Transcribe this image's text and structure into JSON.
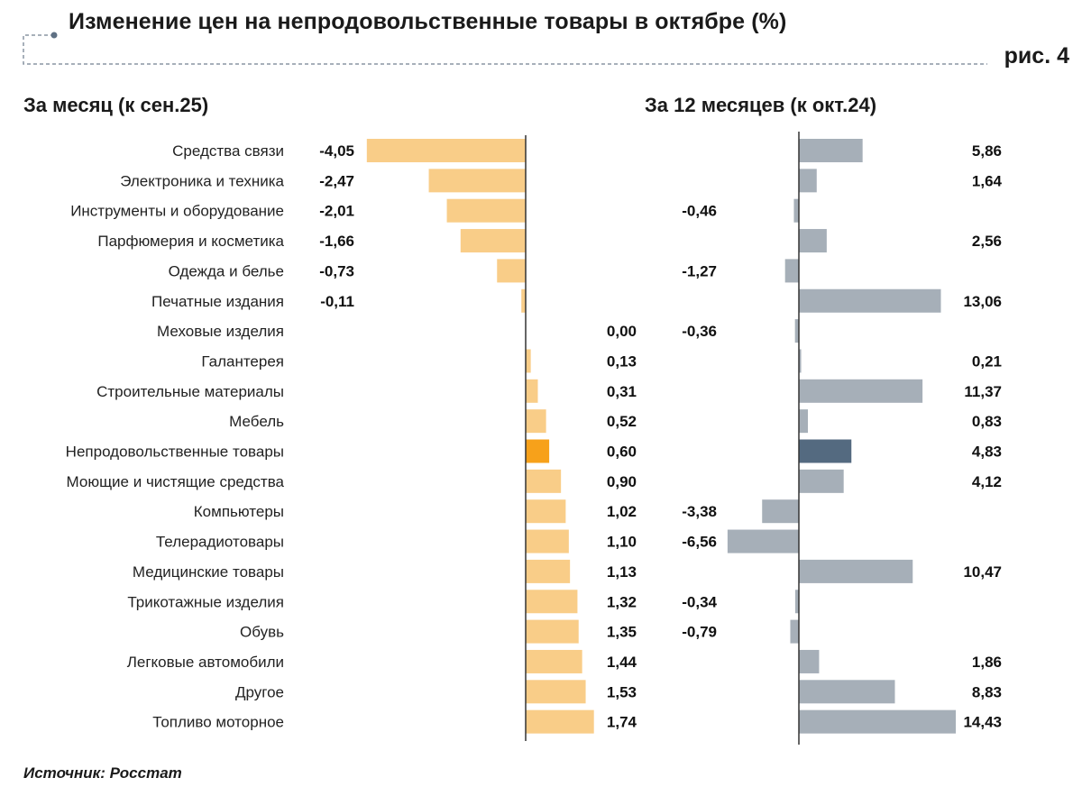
{
  "header": {
    "title": "Изменение цен на непродовольственные товары в октябре (%)",
    "figure_label": "рис. 4"
  },
  "footer": {
    "source": "Источник: Росстат"
  },
  "colors": {
    "month_bar": "#f9cd88",
    "month_highlight": "#f7a11a",
    "year_bar": "#a6afb8",
    "year_highlight": "#546a80",
    "axis": "#333333",
    "dotted_frame": "#8a96a3"
  },
  "chart_data": [
    {
      "type": "bar",
      "orientation": "horizontal",
      "title": "За месяц (к сен.25)",
      "xlabel": "",
      "ylabel": "",
      "unit": "%",
      "grid": false,
      "highlight_category": "Непродовольственные товары",
      "categories": [
        "Средства связи",
        "Электроника и техника",
        "Инструменты и оборудование",
        "Парфюмерия и косметика",
        "Одежда и белье",
        "Печатные издания",
        "Меховые изделия",
        "Галантерея",
        "Строительные материалы",
        "Мебель",
        "Непродовольственные товары",
        "Моющие и чистящие средства",
        "Компьютеры",
        "Телерадиотовары",
        "Медицинские товары",
        "Трикотажные изделия",
        "Обувь",
        "Легковые автомобили",
        "Другое",
        "Топливо моторное"
      ],
      "values": [
        -4.05,
        -2.47,
        -2.01,
        -1.66,
        -0.73,
        -0.11,
        0.0,
        0.13,
        0.31,
        0.52,
        0.6,
        0.9,
        1.02,
        1.1,
        1.13,
        1.32,
        1.35,
        1.44,
        1.53,
        1.74
      ],
      "labels": [
        "-4,05",
        "-2,47",
        "-2,01",
        "-1,66",
        "-0,73",
        "-0,11",
        "0,00",
        "0,13",
        "0,31",
        "0,52",
        "0,60",
        "0,90",
        "1,02",
        "1,10",
        "1,13",
        "1,32",
        "1,35",
        "1,44",
        "1,53",
        "1,74"
      ],
      "xlim": [
        -4.05,
        1.74
      ]
    },
    {
      "type": "bar",
      "orientation": "horizontal",
      "title": "За 12 месяцев (к окт.24)",
      "xlabel": "",
      "ylabel": "",
      "unit": "%",
      "grid": false,
      "highlight_category": "Непродовольственные товары",
      "categories": [
        "Средства связи",
        "Электроника и техника",
        "Инструменты и оборудование",
        "Парфюмерия и косметика",
        "Одежда и белье",
        "Печатные издания",
        "Меховые изделия",
        "Галантерея",
        "Строительные материалы",
        "Мебель",
        "Непродовольственные товары",
        "Моющие и чистящие средства",
        "Компьютеры",
        "Телерадиотовары",
        "Медицинские товары",
        "Трикотажные изделия",
        "Обувь",
        "Легковые автомобили",
        "Другое",
        "Топливо моторное"
      ],
      "values": [
        5.86,
        1.64,
        -0.46,
        2.56,
        -1.27,
        13.06,
        -0.36,
        0.21,
        11.37,
        0.83,
        4.83,
        4.12,
        -3.38,
        -6.56,
        10.47,
        -0.34,
        -0.79,
        1.86,
        8.83,
        14.43
      ],
      "labels": [
        "5,86",
        "1,64",
        "-0,46",
        "2,56",
        "-1,27",
        "13,06",
        "-0,36",
        "0,21",
        "11,37",
        "0,83",
        "4,83",
        "4,12",
        "-3,38",
        "-6,56",
        "10,47",
        "-0,34",
        "-0,79",
        "1,86",
        "8,83",
        "14,43"
      ],
      "xlim": [
        -6.56,
        14.43
      ]
    }
  ]
}
